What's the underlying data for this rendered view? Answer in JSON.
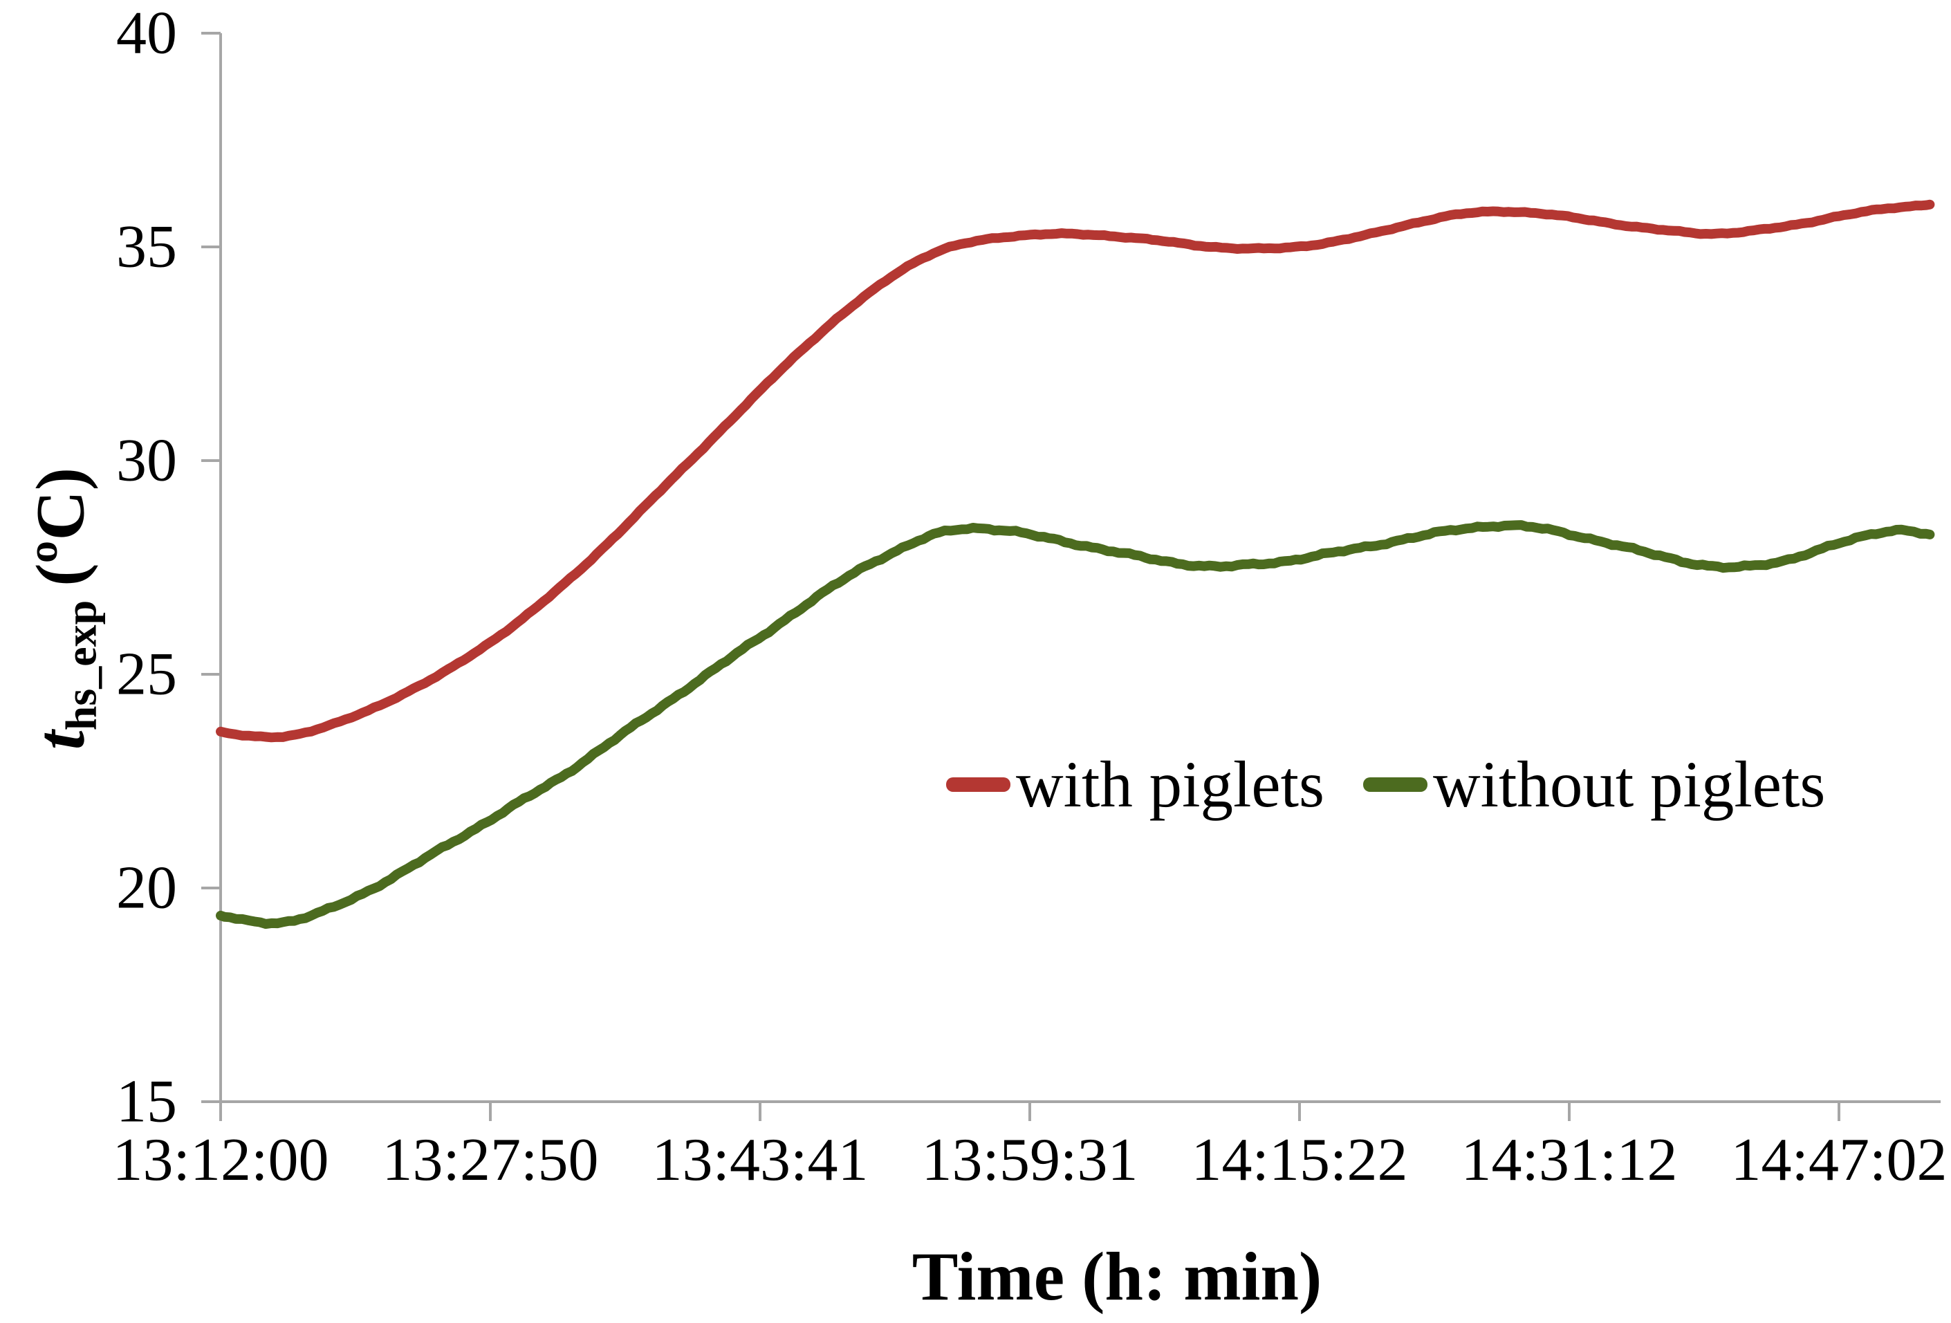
{
  "chart_data": {
    "type": "line",
    "title": "",
    "xlabel": "Time (h: min)",
    "ylabel": {
      "variable": "t",
      "subscript": "hs_exp",
      "unit": "(ºC)"
    },
    "x_axis": {
      "tick_labels": [
        "13:12:00",
        "13:27:50",
        "13:43:41",
        "13:59:31",
        "14:15:22",
        "14:31:12",
        "14:47:02"
      ],
      "tick_interval_seconds": 950,
      "start_time": "13:12:00",
      "end_offset_seconds": 6020
    },
    "y_axis": {
      "ticks": [
        15,
        20,
        25,
        30,
        35,
        40
      ],
      "range": [
        15,
        40
      ],
      "grid": false
    },
    "legend": {
      "position": "inside middle-right",
      "items": [
        {
          "label": "with piglets",
          "color": "#B43732"
        },
        {
          "label": "without piglets",
          "color": "#4C6B1F"
        }
      ]
    },
    "series": [
      {
        "name": "with piglets",
        "color": "#B43732",
        "points": [
          [
            0,
            23.65
          ],
          [
            120,
            23.54
          ],
          [
            240,
            23.56
          ],
          [
            380,
            23.8
          ],
          [
            520,
            24.15
          ],
          [
            660,
            24.6
          ],
          [
            800,
            25.1
          ],
          [
            950,
            25.75
          ],
          [
            1100,
            26.5
          ],
          [
            1250,
            27.35
          ],
          [
            1400,
            28.3
          ],
          [
            1550,
            29.3
          ],
          [
            1700,
            30.3
          ],
          [
            1850,
            31.3
          ],
          [
            2000,
            32.3
          ],
          [
            2150,
            33.2
          ],
          [
            2300,
            34.0
          ],
          [
            2420,
            34.55
          ],
          [
            2550,
            34.95
          ],
          [
            2700,
            35.18
          ],
          [
            2850,
            35.28
          ],
          [
            3000,
            35.3
          ],
          [
            3150,
            35.25
          ],
          [
            3300,
            35.15
          ],
          [
            3450,
            35.03
          ],
          [
            3600,
            34.96
          ],
          [
            3750,
            34.98
          ],
          [
            3900,
            35.1
          ],
          [
            4050,
            35.3
          ],
          [
            4200,
            35.55
          ],
          [
            4350,
            35.75
          ],
          [
            4500,
            35.83
          ],
          [
            4650,
            35.78
          ],
          [
            4800,
            35.65
          ],
          [
            4950,
            35.5
          ],
          [
            5100,
            35.38
          ],
          [
            5250,
            35.31
          ],
          [
            5400,
            35.38
          ],
          [
            5550,
            35.52
          ],
          [
            5700,
            35.72
          ],
          [
            5850,
            35.88
          ],
          [
            5950,
            35.95
          ],
          [
            6020,
            36.0
          ]
        ]
      },
      {
        "name": "without piglets",
        "color": "#4C6B1F",
        "points": [
          [
            0,
            19.35
          ],
          [
            100,
            19.23
          ],
          [
            220,
            19.2
          ],
          [
            340,
            19.4
          ],
          [
            480,
            19.8
          ],
          [
            620,
            20.3
          ],
          [
            760,
            20.85
          ],
          [
            900,
            21.4
          ],
          [
            1050,
            22.0
          ],
          [
            1200,
            22.6
          ],
          [
            1350,
            23.3
          ],
          [
            1500,
            24.0
          ],
          [
            1650,
            24.7
          ],
          [
            1800,
            25.4
          ],
          [
            1950,
            26.1
          ],
          [
            2100,
            26.8
          ],
          [
            2250,
            27.45
          ],
          [
            2400,
            27.95
          ],
          [
            2530,
            28.3
          ],
          [
            2650,
            28.42
          ],
          [
            2780,
            28.35
          ],
          [
            2900,
            28.2
          ],
          [
            3050,
            28.0
          ],
          [
            3200,
            27.8
          ],
          [
            3350,
            27.62
          ],
          [
            3500,
            27.52
          ],
          [
            3620,
            27.56
          ],
          [
            3750,
            27.65
          ],
          [
            3900,
            27.82
          ],
          [
            4050,
            28.0
          ],
          [
            4200,
            28.2
          ],
          [
            4350,
            28.38
          ],
          [
            4500,
            28.48
          ],
          [
            4620,
            28.44
          ],
          [
            4750,
            28.28
          ],
          [
            4900,
            28.05
          ],
          [
            5050,
            27.8
          ],
          [
            5200,
            27.58
          ],
          [
            5330,
            27.5
          ],
          [
            5480,
            27.62
          ],
          [
            5600,
            27.85
          ],
          [
            5720,
            28.1
          ],
          [
            5830,
            28.3
          ],
          [
            5920,
            28.38
          ],
          [
            6020,
            28.26
          ]
        ]
      }
    ],
    "axis_color": "#A6A6A6",
    "text_color": "#000000"
  }
}
